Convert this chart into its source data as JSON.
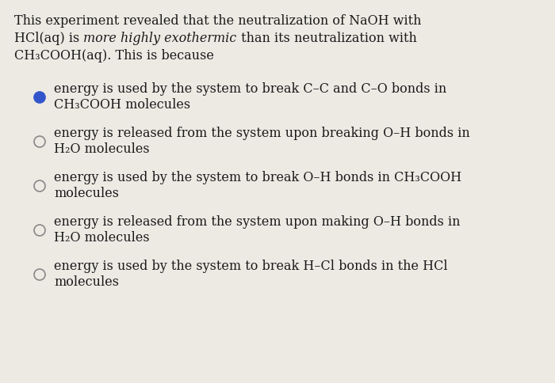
{
  "background_color": "#edeae4",
  "text_color": "#1a1a1a",
  "options": [
    {
      "line1": "energy is used by the system to break C–C and C–O bonds in",
      "line2": "CH₃COOH molecules",
      "selected": true,
      "circle_color": "#2244bb"
    },
    {
      "line1": "energy is released from the system upon breaking O–H bonds in",
      "line2": "H₂O molecules",
      "selected": false,
      "circle_color": "#888888"
    },
    {
      "line1": "energy is used by the system to break O–H bonds in CH₃COOH",
      "line2": "molecules",
      "selected": false,
      "circle_color": "#888888"
    },
    {
      "line1": "energy is released from the system upon making O–H bonds in",
      "line2": "H₂O molecules",
      "selected": false,
      "circle_color": "#888888"
    },
    {
      "line1": "energy is used by the system to break H–Cl bonds in the HCl",
      "line2": "molecules",
      "selected": false,
      "circle_color": "#888888"
    }
  ],
  "title_normal1": "This experiment revealed that the neutralization of NaOH with",
  "title_before_italic": "HCl(aq) is ",
  "title_italic": "more highly exothermic",
  "title_after_italic": " than its neutralization with",
  "title_normal3": "CH₃COOH(aq). This is because",
  "font_size": 11.5,
  "fig_width": 7.0,
  "fig_height": 4.85,
  "dpi": 100
}
